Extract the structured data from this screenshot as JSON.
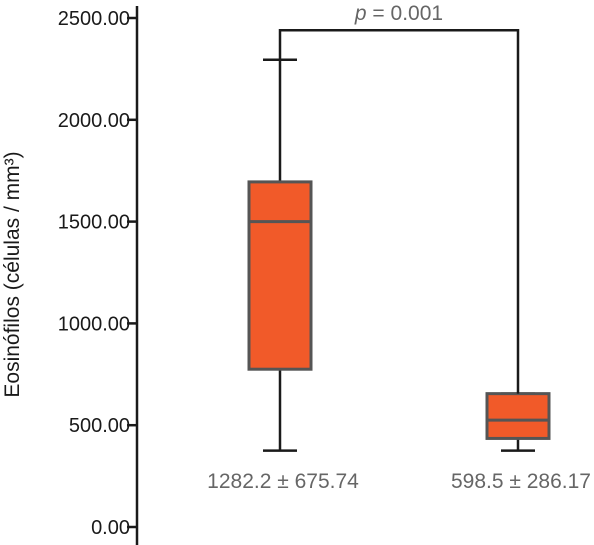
{
  "chart_data": {
    "type": "boxplot",
    "ylabel": "Eosinófilos (células / mm³)",
    "ylim": [
      0,
      2500
    ],
    "yticks": [
      0,
      500,
      1000,
      1500,
      2000,
      2500
    ],
    "ytick_labels": [
      "0.00",
      "500.00",
      "1000.00",
      "1500.00",
      "2000.00",
      "2500.00"
    ],
    "grid": false,
    "box_color": "#f15a29",
    "box_edge_color": "#555555",
    "whisker_color": "#1a1a1a",
    "series": [
      {
        "whisker_low": 375,
        "q1": 775,
        "median": 1500,
        "q3": 1695,
        "whisker_high": 2295,
        "annotation": "1282.2 ± 675.74"
      },
      {
        "whisker_low": 375,
        "q1": 435,
        "median": 525,
        "q3": 655,
        "whisker_high": 655,
        "annotation": "598.5 ± 286.17"
      }
    ],
    "significance": {
      "p_symbol": "p",
      "p_text": " = 0.001",
      "bracket_value": 2440
    }
  }
}
